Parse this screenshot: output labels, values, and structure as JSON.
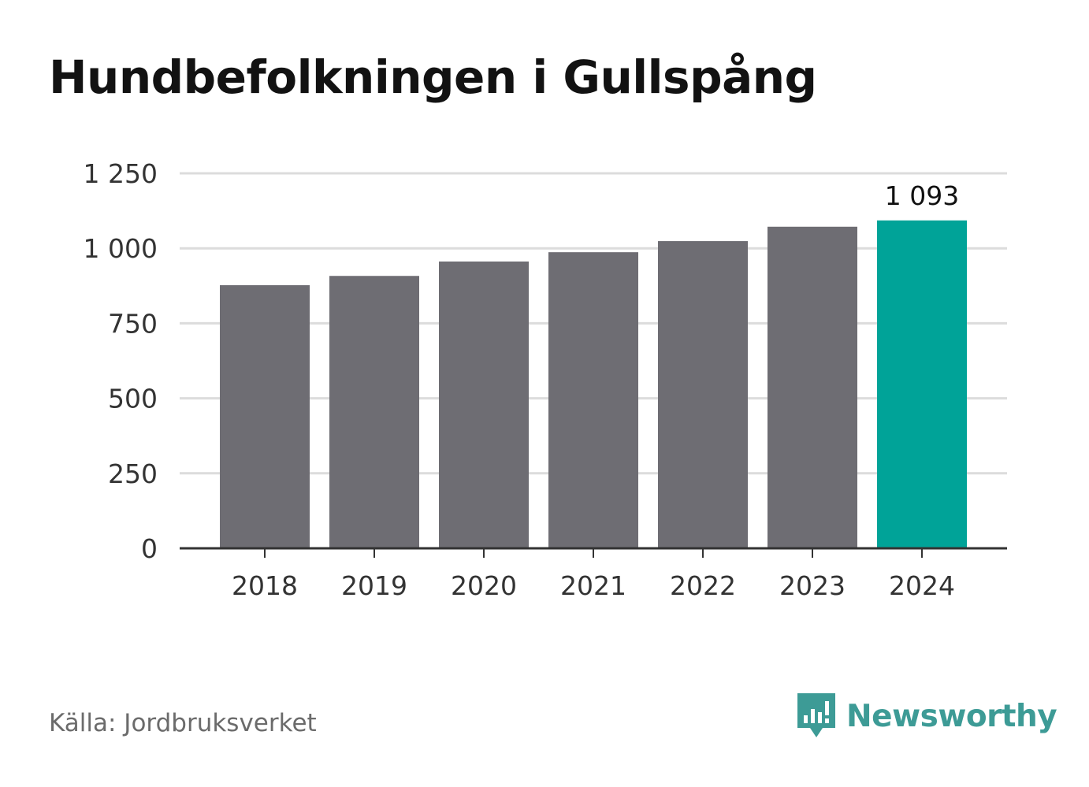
{
  "title": "Hundbefolkningen i Gullspång",
  "source": "Källa: Jordbruksverket",
  "brand": {
    "name": "Newsworthy",
    "icon": "newsworthy-logo-icon",
    "color": "#3d9b96"
  },
  "colors": {
    "bar": "#6e6d73",
    "highlight": "#00a398",
    "grid": "#dcdcdc",
    "axis": "#333333",
    "text": "#333333"
  },
  "chart_data": {
    "type": "bar",
    "title": "Hundbefolkningen i Gullspång",
    "xlabel": "",
    "ylabel": "",
    "categories": [
      "2018",
      "2019",
      "2020",
      "2021",
      "2022",
      "2023",
      "2024"
    ],
    "values": [
      877,
      908,
      956,
      987,
      1024,
      1072,
      1093
    ],
    "highlight_index": 6,
    "data_labels": [
      {
        "index": 6,
        "text": "1 093"
      }
    ],
    "yticks": [
      0,
      250,
      500,
      750,
      1000,
      1250
    ],
    "ytick_labels": [
      "0",
      "250",
      "500",
      "750",
      "1 000",
      "1 250"
    ],
    "ylim": [
      0,
      1250
    ],
    "grid": true,
    "legend": "none"
  }
}
